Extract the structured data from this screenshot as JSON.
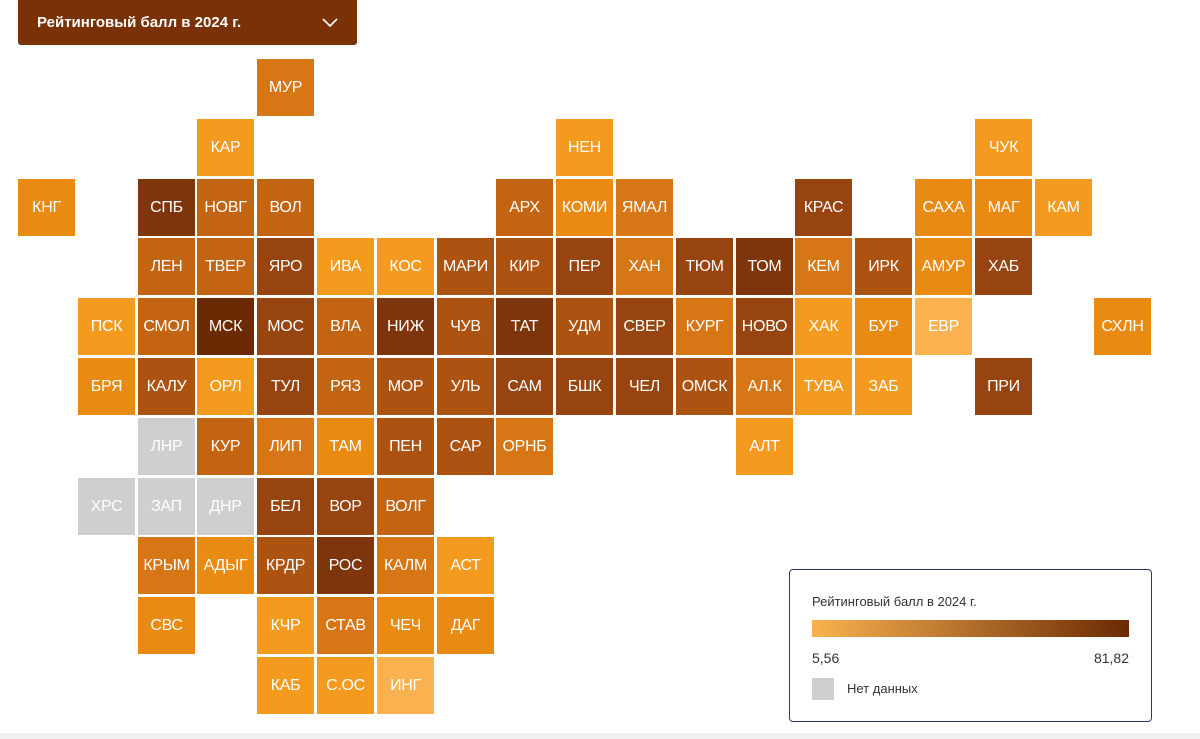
{
  "dropdown": {
    "label": "Рейтинговый балл в 2024 г."
  },
  "legend": {
    "title": "Рейтинговый балл в 2024 г.",
    "min_label": "5,56",
    "max_label": "81,82",
    "nodata_label": "Нет данных",
    "color_low": "#f9b24f",
    "color_high": "#6b2a04",
    "nodata_color": "#cfcfcf"
  },
  "map": {
    "tiles": [
      {
        "label": "МУР",
        "col": 4,
        "row": 0,
        "shade": 3
      },
      {
        "label": "КАР",
        "col": 3,
        "row": 1,
        "shade": 1
      },
      {
        "label": "НЕН",
        "col": 9,
        "row": 1,
        "shade": 1
      },
      {
        "label": "ЧУК",
        "col": 16,
        "row": 1,
        "shade": 1
      },
      {
        "label": "КНГ",
        "col": 0,
        "row": 2,
        "shade": 2
      },
      {
        "label": "СПБ",
        "col": 2,
        "row": 2,
        "shade": 7
      },
      {
        "label": "НОВГ",
        "col": 3,
        "row": 2,
        "shade": 4
      },
      {
        "label": "ВОЛ",
        "col": 4,
        "row": 2,
        "shade": 4
      },
      {
        "label": "АРХ",
        "col": 8,
        "row": 2,
        "shade": 4
      },
      {
        "label": "КОМИ",
        "col": 9,
        "row": 2,
        "shade": 2
      },
      {
        "label": "ЯМАЛ",
        "col": 10,
        "row": 2,
        "shade": 3
      },
      {
        "label": "КРАС",
        "col": 13,
        "row": 2,
        "shade": 6
      },
      {
        "label": "САХА",
        "col": 15,
        "row": 2,
        "shade": 2
      },
      {
        "label": "МАГ",
        "col": 16,
        "row": 2,
        "shade": 2
      },
      {
        "label": "КАМ",
        "col": 17,
        "row": 2,
        "shade": 1
      },
      {
        "label": "ЛЕН",
        "col": 2,
        "row": 3,
        "shade": 4
      },
      {
        "label": "ТВЕР",
        "col": 3,
        "row": 3,
        "shade": 4
      },
      {
        "label": "ЯРО",
        "col": 4,
        "row": 3,
        "shade": 6
      },
      {
        "label": "ИВА",
        "col": 5,
        "row": 3,
        "shade": 1
      },
      {
        "label": "КОС",
        "col": 6,
        "row": 3,
        "shade": 1
      },
      {
        "label": "МАРИ",
        "col": 7,
        "row": 3,
        "shade": 5
      },
      {
        "label": "КИР",
        "col": 8,
        "row": 3,
        "shade": 5
      },
      {
        "label": "ПЕР",
        "col": 9,
        "row": 3,
        "shade": 6
      },
      {
        "label": "ХАН",
        "col": 10,
        "row": 3,
        "shade": 3
      },
      {
        "label": "ТЮМ",
        "col": 11,
        "row": 3,
        "shade": 6
      },
      {
        "label": "ТОМ",
        "col": 12,
        "row": 3,
        "shade": 7
      },
      {
        "label": "КЕМ",
        "col": 13,
        "row": 3,
        "shade": 3
      },
      {
        "label": "ИРК",
        "col": 14,
        "row": 3,
        "shade": 5
      },
      {
        "label": "АМУР",
        "col": 15,
        "row": 3,
        "shade": 2
      },
      {
        "label": "ХАБ",
        "col": 16,
        "row": 3,
        "shade": 6
      },
      {
        "label": "ПСК",
        "col": 1,
        "row": 4,
        "shade": 1
      },
      {
        "label": "СМОЛ",
        "col": 2,
        "row": 4,
        "shade": 4
      },
      {
        "label": "МСК",
        "col": 3,
        "row": 4,
        "shade": 8
      },
      {
        "label": "МОС",
        "col": 4,
        "row": 4,
        "shade": 6
      },
      {
        "label": "ВЛА",
        "col": 5,
        "row": 4,
        "shade": 4
      },
      {
        "label": "НИЖ",
        "col": 6,
        "row": 4,
        "shade": 7
      },
      {
        "label": "ЧУВ",
        "col": 7,
        "row": 4,
        "shade": 5
      },
      {
        "label": "ТАТ",
        "col": 8,
        "row": 4,
        "shade": 7
      },
      {
        "label": "УДМ",
        "col": 9,
        "row": 4,
        "shade": 5
      },
      {
        "label": "СВЕР",
        "col": 10,
        "row": 4,
        "shade": 6
      },
      {
        "label": "КУРГ",
        "col": 11,
        "row": 4,
        "shade": 3
      },
      {
        "label": "НОВО",
        "col": 12,
        "row": 4,
        "shade": 6
      },
      {
        "label": "ХАК",
        "col": 13,
        "row": 4,
        "shade": 1
      },
      {
        "label": "БУР",
        "col": 14,
        "row": 4,
        "shade": 2
      },
      {
        "label": "ЕВР",
        "col": 15,
        "row": 4,
        "shade": 0
      },
      {
        "label": "СХЛН",
        "col": 18,
        "row": 4,
        "shade": 2
      },
      {
        "label": "БРЯ",
        "col": 1,
        "row": 5,
        "shade": 2
      },
      {
        "label": "КАЛУ",
        "col": 2,
        "row": 5,
        "shade": 5
      },
      {
        "label": "ОРЛ",
        "col": 3,
        "row": 5,
        "shade": 1
      },
      {
        "label": "ТУЛ",
        "col": 4,
        "row": 5,
        "shade": 6
      },
      {
        "label": "РЯЗ",
        "col": 5,
        "row": 5,
        "shade": 4
      },
      {
        "label": "МОР",
        "col": 6,
        "row": 5,
        "shade": 5
      },
      {
        "label": "УЛЬ",
        "col": 7,
        "row": 5,
        "shade": 5
      },
      {
        "label": "САМ",
        "col": 8,
        "row": 5,
        "shade": 6
      },
      {
        "label": "БШК",
        "col": 9,
        "row": 5,
        "shade": 6
      },
      {
        "label": "ЧЕЛ",
        "col": 10,
        "row": 5,
        "shade": 6
      },
      {
        "label": "ОМСК",
        "col": 11,
        "row": 5,
        "shade": 5
      },
      {
        "label": "АЛ.К",
        "col": 12,
        "row": 5,
        "shade": 3
      },
      {
        "label": "ТУВА",
        "col": 13,
        "row": 5,
        "shade": 1
      },
      {
        "label": "ЗАБ",
        "col": 14,
        "row": 5,
        "shade": 1
      },
      {
        "label": "ПРИ",
        "col": 16,
        "row": 5,
        "shade": 6
      },
      {
        "label": "ЛНР",
        "col": 2,
        "row": 6,
        "shade": -1
      },
      {
        "label": "КУР",
        "col": 3,
        "row": 6,
        "shade": 4
      },
      {
        "label": "ЛИП",
        "col": 4,
        "row": 6,
        "shade": 3
      },
      {
        "label": "ТАМ",
        "col": 5,
        "row": 6,
        "shade": 2
      },
      {
        "label": "ПЕН",
        "col": 6,
        "row": 6,
        "shade": 5
      },
      {
        "label": "САР",
        "col": 7,
        "row": 6,
        "shade": 5
      },
      {
        "label": "ОРНБ",
        "col": 8,
        "row": 6,
        "shade": 3
      },
      {
        "label": "АЛТ",
        "col": 12,
        "row": 6,
        "shade": 1
      },
      {
        "label": "ХРС",
        "col": 1,
        "row": 7,
        "shade": -1
      },
      {
        "label": "ЗАП",
        "col": 2,
        "row": 7,
        "shade": -1
      },
      {
        "label": "ДНР",
        "col": 3,
        "row": 7,
        "shade": -1
      },
      {
        "label": "БЕЛ",
        "col": 4,
        "row": 7,
        "shade": 6
      },
      {
        "label": "ВОР",
        "col": 5,
        "row": 7,
        "shade": 6
      },
      {
        "label": "ВОЛГ",
        "col": 6,
        "row": 7,
        "shade": 4
      },
      {
        "label": "КРЫМ",
        "col": 2,
        "row": 8,
        "shade": 3
      },
      {
        "label": "АДЫГ",
        "col": 3,
        "row": 8,
        "shade": 2
      },
      {
        "label": "КРДР",
        "col": 4,
        "row": 8,
        "shade": 5
      },
      {
        "label": "РОС",
        "col": 5,
        "row": 8,
        "shade": 7
      },
      {
        "label": "КАЛМ",
        "col": 6,
        "row": 8,
        "shade": 3
      },
      {
        "label": "АСТ",
        "col": 7,
        "row": 8,
        "shade": 1
      },
      {
        "label": "СВС",
        "col": 2,
        "row": 9,
        "shade": 2
      },
      {
        "label": "КЧР",
        "col": 4,
        "row": 9,
        "shade": 1
      },
      {
        "label": "СТАВ",
        "col": 5,
        "row": 9,
        "shade": 3
      },
      {
        "label": "ЧЕЧ",
        "col": 6,
        "row": 9,
        "shade": 2
      },
      {
        "label": "ДАГ",
        "col": 7,
        "row": 9,
        "shade": 2
      },
      {
        "label": "КАБ",
        "col": 4,
        "row": 10,
        "shade": 1
      },
      {
        "label": "С.ОС",
        "col": 5,
        "row": 10,
        "shade": 1
      },
      {
        "label": "ИНГ",
        "col": 6,
        "row": 10,
        "shade": 0
      }
    ]
  }
}
